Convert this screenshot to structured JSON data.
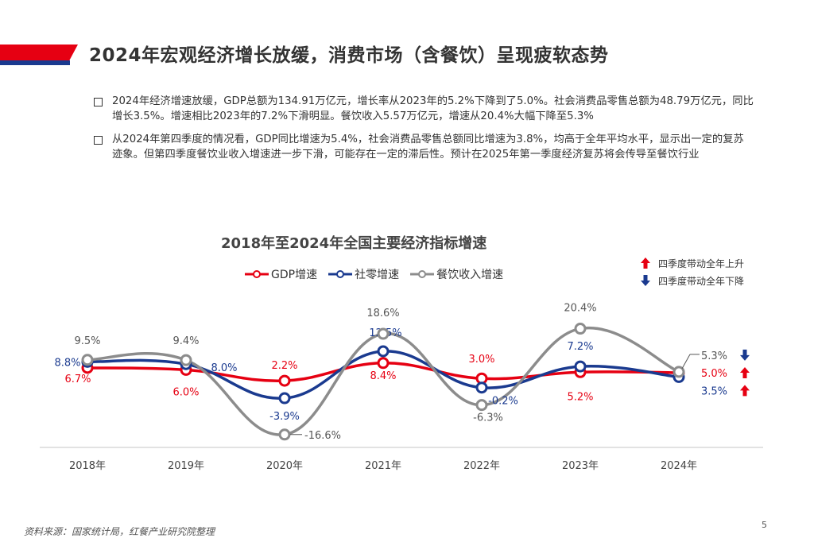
{
  "header": {
    "title": "2024年宏观经济增长放缓，消费市场（含餐饮）呈现疲软态势"
  },
  "bullets": [
    "2024年经济增速放缓，GDP总额为134.91万亿元，增长率从2023年的5.2%下降到了5.0%。社会消费品零售总额为48.79万亿元，同比增长3.5%。增速相比2023年的7.2%下滑明显。餐饮收入5.57万亿元，增速从20.4%大幅下降至5.3%",
    "从2024年第四季度的情况看，GDP同比增速为5.4%，社会消费品零售总额同比增速为3.8%，均高于全年平均水平，显示出一定的复苏迹象。但第四季度餐饮业收入增速进一步下滑，可能存在一定的滞后性。预计在2025年第一季度经济复苏将会传导至餐饮行业"
  ],
  "side_legend": {
    "up": "四季度带动全年上升",
    "down": "四季度带动全年下降"
  },
  "chart_data": {
    "type": "line",
    "title": "2018年至2024年全国主要经济指标增速",
    "categories": [
      "2018年",
      "2019年",
      "2020年",
      "2021年",
      "2022年",
      "2023年",
      "2024年"
    ],
    "series": [
      {
        "name": "GDP增速",
        "color": "#e60012",
        "values": [
          6.7,
          6.0,
          2.2,
          8.4,
          3.0,
          5.2,
          5.0
        ],
        "labels": [
          "6.7%",
          "6.0%",
          "2.2%",
          "8.4%",
          "3.0%",
          "5.2%",
          "5.0%"
        ],
        "trend_2024": "up"
      },
      {
        "name": "社零增速",
        "color": "#1a3a8f",
        "values": [
          8.8,
          8.0,
          -3.9,
          12.5,
          -0.2,
          7.2,
          3.5
        ],
        "labels": [
          "8.8%",
          "8.0%",
          "-3.9%",
          "12.5%",
          "-0.2%",
          "7.2%",
          "3.5%"
        ],
        "trend_2024": "up"
      },
      {
        "name": "餐饮收入增速",
        "color": "#8c8c8c",
        "values": [
          9.5,
          9.4,
          -16.6,
          18.6,
          -6.3,
          20.4,
          5.3
        ],
        "labels": [
          "9.5%",
          "9.4%",
          "-16.6%",
          "18.6%",
          "-6.3%",
          "20.4%",
          "5.3%"
        ],
        "trend_2024": "down"
      }
    ],
    "ylabel": "",
    "xlabel": "",
    "unit": "%",
    "grid": false,
    "legend": "top"
  },
  "footer": {
    "source": "资料来源：国家统计局，红餐产业研究院整理",
    "page": "5"
  }
}
